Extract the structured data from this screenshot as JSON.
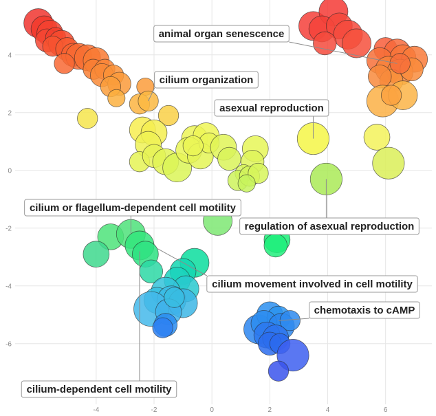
{
  "chart_data": {
    "type": "scatter",
    "title": "",
    "xlabel": "",
    "ylabel": "",
    "xlim": [
      -6.8,
      7.6
    ],
    "ylim": [
      -8.1,
      5.9
    ],
    "grid": true,
    "x_ticks": [
      -4,
      -2,
      0,
      2,
      4,
      6
    ],
    "y_ticks": [
      4,
      2,
      0,
      -2,
      -4,
      -6
    ],
    "x_tick_labels": [
      "-4",
      "-2",
      "0",
      "2",
      "4",
      "6"
    ],
    "y_tick_labels": [
      "4",
      "2",
      "0",
      "-2",
      "-4",
      "-6"
    ],
    "points": [
      {
        "x": -6.0,
        "y": 5.1,
        "r": 0.5,
        "color": "#f0352f"
      },
      {
        "x": -5.8,
        "y": 4.9,
        "r": 0.45,
        "color": "#f33a2c"
      },
      {
        "x": -5.6,
        "y": 4.75,
        "r": 0.45,
        "color": "#f34230"
      },
      {
        "x": -5.7,
        "y": 4.5,
        "r": 0.4,
        "color": "#f54632"
      },
      {
        "x": -5.4,
        "y": 4.6,
        "r": 0.35,
        "color": "#f23e2d"
      },
      {
        "x": -5.2,
        "y": 4.4,
        "r": 0.45,
        "color": "#f64b2f"
      },
      {
        "x": -5.5,
        "y": 4.3,
        "r": 0.35,
        "color": "#f75430"
      },
      {
        "x": -5.0,
        "y": 4.2,
        "r": 0.4,
        "color": "#f75a30"
      },
      {
        "x": -4.8,
        "y": 4.0,
        "r": 0.4,
        "color": "#f86231"
      },
      {
        "x": -4.6,
        "y": 3.95,
        "r": 0.45,
        "color": "#f86a32"
      },
      {
        "x": -4.3,
        "y": 3.9,
        "r": 0.45,
        "color": "#f87032"
      },
      {
        "x": -4.0,
        "y": 3.8,
        "r": 0.45,
        "color": "#f97a33"
      },
      {
        "x": -4.1,
        "y": 3.5,
        "r": 0.35,
        "color": "#f97f34"
      },
      {
        "x": -5.1,
        "y": 3.7,
        "r": 0.35,
        "color": "#f86834"
      },
      {
        "x": -3.7,
        "y": 3.5,
        "r": 0.35,
        "color": "#f98536"
      },
      {
        "x": -3.8,
        "y": 3.3,
        "r": 0.4,
        "color": "#f98a37"
      },
      {
        "x": -3.4,
        "y": 3.3,
        "r": 0.35,
        "color": "#fa9238"
      },
      {
        "x": -3.2,
        "y": 3.0,
        "r": 0.4,
        "color": "#fa9a3a"
      },
      {
        "x": -3.5,
        "y": 2.9,
        "r": 0.35,
        "color": "#fa9e3b"
      },
      {
        "x": -2.3,
        "y": 2.9,
        "r": 0.3,
        "color": "#fb9c3b"
      },
      {
        "x": -3.3,
        "y": 2.5,
        "r": 0.3,
        "color": "#fbb03f"
      },
      {
        "x": -2.5,
        "y": 2.3,
        "r": 0.35,
        "color": "#fbb441"
      },
      {
        "x": -2.2,
        "y": 2.4,
        "r": 0.35,
        "color": "#fbb842"
      },
      {
        "x": -4.3,
        "y": 1.8,
        "r": 0.35,
        "color": "#f6e54c"
      },
      {
        "x": -1.5,
        "y": 1.9,
        "r": 0.35,
        "color": "#f9d046"
      },
      {
        "x": -2.4,
        "y": 1.4,
        "r": 0.45,
        "color": "#f7ed50"
      },
      {
        "x": -2.0,
        "y": 1.3,
        "r": 0.45,
        "color": "#f4ef50"
      },
      {
        "x": -2.2,
        "y": 0.9,
        "r": 0.45,
        "color": "#eff255"
      },
      {
        "x": -2.5,
        "y": 0.3,
        "r": 0.35,
        "color": "#e5f355"
      },
      {
        "x": -2.0,
        "y": 0.5,
        "r": 0.4,
        "color": "#e6f256"
      },
      {
        "x": -1.6,
        "y": 0.3,
        "r": 0.45,
        "color": "#e2f356"
      },
      {
        "x": -1.2,
        "y": 0.1,
        "r": 0.5,
        "color": "#daf457"
      },
      {
        "x": -0.6,
        "y": 1.1,
        "r": 0.45,
        "color": "#ecf556"
      },
      {
        "x": -0.2,
        "y": 1.2,
        "r": 0.45,
        "color": "#eef657"
      },
      {
        "x": -0.8,
        "y": 0.7,
        "r": 0.45,
        "color": "#e9f656"
      },
      {
        "x": -0.4,
        "y": 0.5,
        "r": 0.45,
        "color": "#e4f556"
      },
      {
        "x": -0.1,
        "y": 0.95,
        "r": 0.35,
        "color": "#eaf657"
      },
      {
        "x": 0.4,
        "y": 0.8,
        "r": 0.45,
        "color": "#e0f457"
      },
      {
        "x": 0.6,
        "y": 0.4,
        "r": 0.4,
        "color": "#d9f359"
      },
      {
        "x": -0.65,
        "y": 0.85,
        "r": 0.35,
        "color": "#ebf657"
      },
      {
        "x": 1.5,
        "y": 0.75,
        "r": 0.45,
        "color": "#e6f657"
      },
      {
        "x": 1.4,
        "y": 0.3,
        "r": 0.4,
        "color": "#dff55a"
      },
      {
        "x": 1.1,
        "y": -0.1,
        "r": 0.3,
        "color": "#d6f45b"
      },
      {
        "x": 0.9,
        "y": -0.35,
        "r": 0.35,
        "color": "#cef35c"
      },
      {
        "x": 1.3,
        "y": -0.2,
        "r": 0.35,
        "color": "#d2f35c"
      },
      {
        "x": 1.6,
        "y": -0.1,
        "r": 0.35,
        "color": "#d7f45b"
      },
      {
        "x": 1.2,
        "y": -0.45,
        "r": 0.3,
        "color": "#c7f35d"
      },
      {
        "x": 3.5,
        "y": 1.1,
        "r": 0.55,
        "color": "#f4f647"
      },
      {
        "x": 3.95,
        "y": -0.3,
        "r": 0.55,
        "color": "#aaea57"
      },
      {
        "x": 5.7,
        "y": 1.15,
        "r": 0.45,
        "color": "#f3f25a"
      },
      {
        "x": 6.1,
        "y": 0.25,
        "r": 0.55,
        "color": "#dbef58"
      },
      {
        "x": 3.5,
        "y": 5.0,
        "r": 0.5,
        "color": "#f5403a"
      },
      {
        "x": 4.2,
        "y": 5.5,
        "r": 0.5,
        "color": "#f53a35"
      },
      {
        "x": 3.8,
        "y": 4.9,
        "r": 0.45,
        "color": "#f4423a"
      },
      {
        "x": 4.4,
        "y": 5.0,
        "r": 0.45,
        "color": "#f4463b"
      },
      {
        "x": 4.7,
        "y": 4.7,
        "r": 0.5,
        "color": "#f5493b"
      },
      {
        "x": 5.0,
        "y": 4.4,
        "r": 0.5,
        "color": "#f6503c"
      },
      {
        "x": 3.9,
        "y": 4.4,
        "r": 0.4,
        "color": "#f44a3c"
      },
      {
        "x": 6.0,
        "y": 4.2,
        "r": 0.4,
        "color": "#f85d3a"
      },
      {
        "x": 6.4,
        "y": 4.1,
        "r": 0.45,
        "color": "#f76a3b"
      },
      {
        "x": 5.8,
        "y": 3.8,
        "r": 0.45,
        "color": "#f77038"
      },
      {
        "x": 6.6,
        "y": 3.9,
        "r": 0.45,
        "color": "#f87539"
      },
      {
        "x": 7.0,
        "y": 3.85,
        "r": 0.45,
        "color": "#f97a3a"
      },
      {
        "x": 6.1,
        "y": 3.5,
        "r": 0.45,
        "color": "#f8823b"
      },
      {
        "x": 6.5,
        "y": 3.4,
        "r": 0.45,
        "color": "#f8873b"
      },
      {
        "x": 6.9,
        "y": 3.5,
        "r": 0.4,
        "color": "#f98c3c"
      },
      {
        "x": 6.2,
        "y": 3.1,
        "r": 0.4,
        "color": "#f9923c"
      },
      {
        "x": 6.5,
        "y": 3.7,
        "r": 0.35,
        "color": "#f76e3b"
      },
      {
        "x": 5.8,
        "y": 3.25,
        "r": 0.4,
        "color": "#f8893c"
      },
      {
        "x": 5.9,
        "y": 2.4,
        "r": 0.55,
        "color": "#fbb045"
      },
      {
        "x": 6.6,
        "y": 2.6,
        "r": 0.5,
        "color": "#fbb446"
      },
      {
        "x": 6.2,
        "y": 2.6,
        "r": 0.35,
        "color": "#fba241"
      },
      {
        "x": 0.2,
        "y": -1.75,
        "r": 0.5,
        "color": "#7ee873"
      },
      {
        "x": 2.25,
        "y": -2.4,
        "r": 0.45,
        "color": "#18f077"
      },
      {
        "x": 2.2,
        "y": -2.6,
        "r": 0.4,
        "color": "#20ee7b"
      },
      {
        "x": -3.5,
        "y": -2.3,
        "r": 0.45,
        "color": "#4de37a"
      },
      {
        "x": -2.8,
        "y": -2.2,
        "r": 0.5,
        "color": "#4ee27a"
      },
      {
        "x": -2.5,
        "y": -2.6,
        "r": 0.5,
        "color": "#32e57d"
      },
      {
        "x": -2.3,
        "y": -2.9,
        "r": 0.45,
        "color": "#2de281"
      },
      {
        "x": -4.0,
        "y": -2.9,
        "r": 0.45,
        "color": "#3ed88d"
      },
      {
        "x": -2.1,
        "y": -3.5,
        "r": 0.4,
        "color": "#2cd8a5"
      },
      {
        "x": -0.6,
        "y": -3.2,
        "r": 0.5,
        "color": "#0bdd9e"
      },
      {
        "x": -1.0,
        "y": -3.5,
        "r": 0.45,
        "color": "#14d6b1"
      },
      {
        "x": -1.2,
        "y": -3.8,
        "r": 0.45,
        "color": "#1ad2bd"
      },
      {
        "x": -0.9,
        "y": -4.1,
        "r": 0.45,
        "color": "#29c9cf"
      },
      {
        "x": -1.6,
        "y": -4.2,
        "r": 0.5,
        "color": "#34c3da"
      },
      {
        "x": -1.9,
        "y": -4.5,
        "r": 0.45,
        "color": "#37c0e0"
      },
      {
        "x": -1.4,
        "y": -4.5,
        "r": 0.5,
        "color": "#3cbbe5"
      },
      {
        "x": -1.0,
        "y": -4.6,
        "r": 0.5,
        "color": "#3cb6e5"
      },
      {
        "x": -2.1,
        "y": -4.8,
        "r": 0.6,
        "color": "#44b8ea"
      },
      {
        "x": -1.5,
        "y": -4.9,
        "r": 0.45,
        "color": "#3fb2ea"
      },
      {
        "x": -1.3,
        "y": -4.4,
        "r": 0.35,
        "color": "#38bde2"
      },
      {
        "x": -1.6,
        "y": -5.35,
        "r": 0.4,
        "color": "#2a8cf0"
      },
      {
        "x": -1.7,
        "y": -5.45,
        "r": 0.35,
        "color": "#2d80f2"
      },
      {
        "x": 1.6,
        "y": -5.5,
        "r": 0.5,
        "color": "#2d86f0"
      },
      {
        "x": 2.0,
        "y": -5.0,
        "r": 0.45,
        "color": "#2b8ff0"
      },
      {
        "x": 2.3,
        "y": -5.1,
        "r": 0.4,
        "color": "#2a93ef"
      },
      {
        "x": 1.8,
        "y": -5.3,
        "r": 0.45,
        "color": "#2b8cf0"
      },
      {
        "x": 2.4,
        "y": -5.4,
        "r": 0.45,
        "color": "#2c86ef"
      },
      {
        "x": 2.7,
        "y": -5.2,
        "r": 0.35,
        "color": "#2e8aef"
      },
      {
        "x": 1.9,
        "y": -5.7,
        "r": 0.45,
        "color": "#2d78ee"
      },
      {
        "x": 2.2,
        "y": -5.8,
        "r": 0.45,
        "color": "#2d74ee"
      },
      {
        "x": 2.0,
        "y": -6.0,
        "r": 0.4,
        "color": "#2c6ced"
      },
      {
        "x": 2.35,
        "y": -6.0,
        "r": 0.35,
        "color": "#2c6aed"
      },
      {
        "x": 2.8,
        "y": -6.4,
        "r": 0.55,
        "color": "#3d5ff0"
      },
      {
        "x": 2.3,
        "y": -6.95,
        "r": 0.35,
        "color": "#3953ec"
      }
    ],
    "annotations": [
      {
        "text": "animal organ senescence",
        "target": [
          6.4,
          3.7
        ]
      },
      {
        "text": "cilium organization",
        "target": [
          -2.2,
          2.4
        ]
      },
      {
        "text": "asexual reproduction",
        "target": [
          3.5,
          1.1
        ]
      },
      {
        "text": "cilium or flagellum-dependent cell motility",
        "target": [
          -2.8,
          -2.2
        ]
      },
      {
        "text": "regulation of asexual reproduction",
        "target": [
          3.95,
          -0.3
        ]
      },
      {
        "text": "cilium movement involved in cell motility",
        "target": [
          -1.9,
          -2.7
        ]
      },
      {
        "text": "chemotaxis to cAMP",
        "target": [
          2.3,
          -5.2
        ]
      },
      {
        "text": "cilium-dependent cell motility",
        "target": [
          -2.5,
          -2.8
        ]
      }
    ]
  }
}
